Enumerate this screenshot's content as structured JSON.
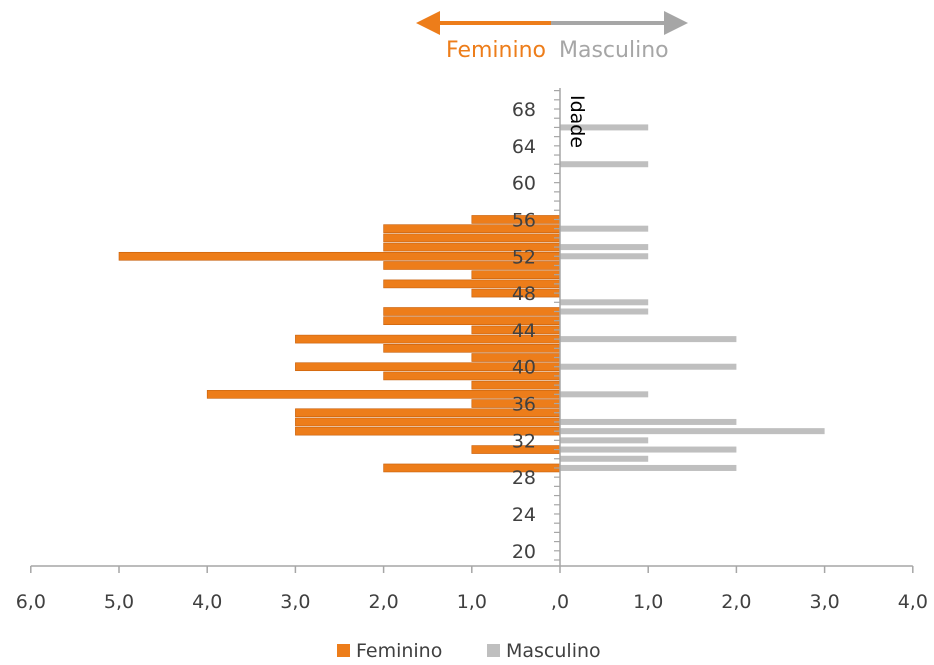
{
  "direction_labels": {
    "left": "Feminino",
    "right": "Masculino"
  },
  "colors": {
    "feminino": "#ED7D1A",
    "masculino": "#BFBFBF",
    "axis": "#A6A6A6",
    "text": "#404040"
  },
  "chart_data": {
    "type": "bar",
    "orientation": "horizontal-population-pyramid",
    "ylabel": "Idade",
    "y_tick_labels": [
      "20",
      "24",
      "28",
      "32",
      "36",
      "40",
      "44",
      "48",
      "52",
      "56",
      "60",
      "64",
      "68"
    ],
    "ylim": [
      19,
      73
    ],
    "x_tick_labels": [
      "6,0",
      "5,0",
      "4,0",
      "3,0",
      "2,0",
      "1,0",
      ",0",
      "1,0",
      "2,0",
      "3,0",
      "4,0"
    ],
    "xlim": [
      -6,
      4
    ],
    "grid": false,
    "legend_position": "bottom",
    "ages": [
      29,
      30,
      31,
      32,
      33,
      34,
      35,
      36,
      37,
      38,
      39,
      40,
      41,
      42,
      43,
      44,
      45,
      46,
      47,
      48,
      49,
      50,
      51,
      52,
      53,
      54,
      55,
      56,
      57,
      58,
      59,
      60,
      61,
      62,
      63,
      64,
      65,
      66
    ],
    "series": [
      {
        "name": "Feminino",
        "values": [
          2,
          0,
          1,
          0,
          3,
          3,
          3,
          1,
          4,
          1,
          2,
          3,
          1,
          2,
          3,
          1,
          2,
          2,
          0,
          1,
          2,
          1,
          2,
          5,
          2,
          2,
          2,
          1,
          0,
          0,
          0,
          0,
          0,
          0,
          0,
          0,
          0,
          0
        ]
      },
      {
        "name": "Masculino",
        "values": [
          2,
          1,
          2,
          1,
          3,
          2,
          0,
          0,
          1,
          0,
          0,
          2,
          0,
          0,
          2,
          0,
          0,
          1,
          1,
          0,
          0,
          0,
          0,
          1,
          1,
          0,
          1,
          0,
          0,
          0,
          0,
          0,
          0,
          1,
          0,
          0,
          0,
          1
        ]
      }
    ]
  }
}
